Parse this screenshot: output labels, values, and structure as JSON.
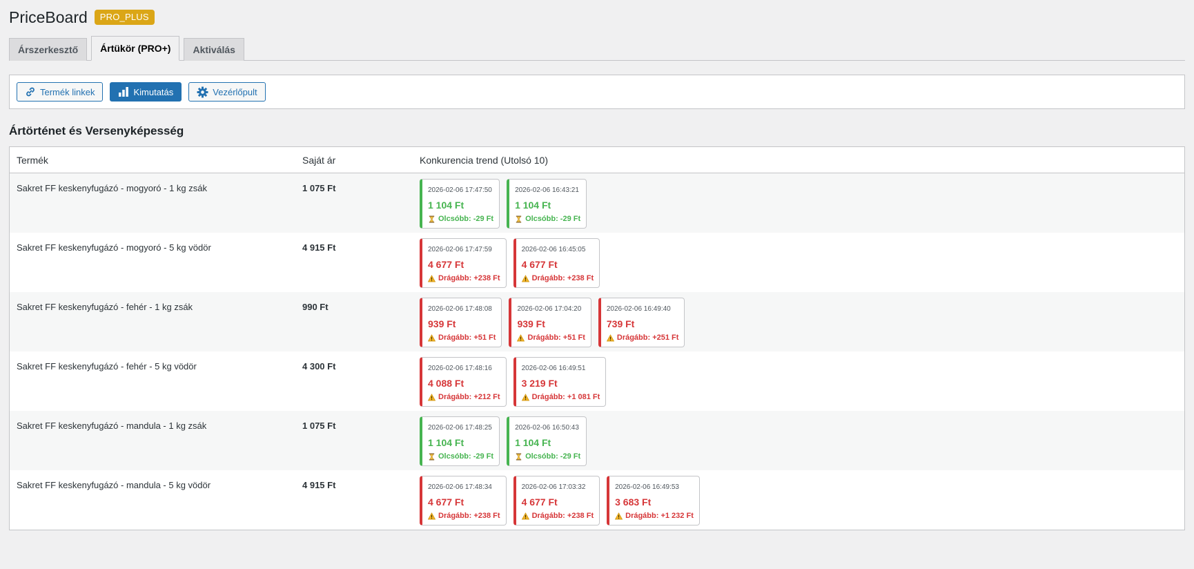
{
  "header": {
    "title": "PriceBoard",
    "badge": "PRO_PLUS"
  },
  "tabs": [
    {
      "label": "Árszerkesztő"
    },
    {
      "label": "Ártükör (PRO+)",
      "active": true
    },
    {
      "label": "Aktiválás"
    }
  ],
  "toolbar": {
    "links_label": "Termék linkek",
    "stats_label": "Kimutatás",
    "dashboard_label": "Vezérlőpult"
  },
  "section_title": "Ártörténet és Versenyképesség",
  "table": {
    "headers": {
      "product": "Termék",
      "own_price": "Saját ár",
      "trend": "Konkurencia trend (Utolsó 10)"
    },
    "rows": [
      {
        "product": "Sakret FF keskenyfugázó - mogyoró - 1 kg zsák",
        "own_price": "1 075 Ft",
        "cards": [
          {
            "ts": "2026-02-06 17:47:50",
            "price": "1 104 Ft",
            "status": "cheaper",
            "note": "Olcsóbb: -29 Ft"
          },
          {
            "ts": "2026-02-06 16:43:21",
            "price": "1 104 Ft",
            "status": "cheaper",
            "note": "Olcsóbb: -29 Ft"
          }
        ]
      },
      {
        "product": "Sakret FF keskenyfugázó - mogyoró - 5 kg vödör",
        "own_price": "4 915 Ft",
        "cards": [
          {
            "ts": "2026-02-06 17:47:59",
            "price": "4 677 Ft",
            "status": "pricier",
            "note": "Drágább: +238 Ft"
          },
          {
            "ts": "2026-02-06 16:45:05",
            "price": "4 677 Ft",
            "status": "pricier",
            "note": "Drágább: +238 Ft"
          }
        ]
      },
      {
        "product": "Sakret FF keskenyfugázó - fehér - 1 kg zsák",
        "own_price": "990 Ft",
        "cards": [
          {
            "ts": "2026-02-06 17:48:08",
            "price": "939 Ft",
            "status": "pricier",
            "note": "Drágább: +51 Ft"
          },
          {
            "ts": "2026-02-06 17:04:20",
            "price": "939 Ft",
            "status": "pricier",
            "note": "Drágább: +51 Ft"
          },
          {
            "ts": "2026-02-06 16:49:40",
            "price": "739 Ft",
            "status": "pricier",
            "note": "Drágább: +251 Ft"
          }
        ]
      },
      {
        "product": "Sakret FF keskenyfugázó - fehér - 5 kg vödör",
        "own_price": "4 300 Ft",
        "cards": [
          {
            "ts": "2026-02-06 17:48:16",
            "price": "4 088 Ft",
            "status": "pricier",
            "note": "Drágább: +212 Ft"
          },
          {
            "ts": "2026-02-06 16:49:51",
            "price": "3 219 Ft",
            "status": "pricier",
            "note": "Drágább: +1 081 Ft"
          }
        ]
      },
      {
        "product": "Sakret FF keskenyfugázó - mandula - 1 kg zsák",
        "own_price": "1 075 Ft",
        "cards": [
          {
            "ts": "2026-02-06 17:48:25",
            "price": "1 104 Ft",
            "status": "cheaper",
            "note": "Olcsóbb: -29 Ft"
          },
          {
            "ts": "2026-02-06 16:50:43",
            "price": "1 104 Ft",
            "status": "cheaper",
            "note": "Olcsóbb: -29 Ft"
          }
        ]
      },
      {
        "product": "Sakret FF keskenyfugázó - mandula - 5 kg vödör",
        "own_price": "4 915 Ft",
        "cards": [
          {
            "ts": "2026-02-06 17:48:34",
            "price": "4 677 Ft",
            "status": "pricier",
            "note": "Drágább: +238 Ft"
          },
          {
            "ts": "2026-02-06 17:03:32",
            "price": "4 677 Ft",
            "status": "pricier",
            "note": "Drágább: +238 Ft"
          },
          {
            "ts": "2026-02-06 16:49:53",
            "price": "3 683 Ft",
            "status": "pricier",
            "note": "Drágább: +1 232 Ft"
          }
        ]
      }
    ]
  },
  "colors": {
    "accent": "#2271b1",
    "badge": "#dba617",
    "cheaper": "#46b450",
    "pricier": "#d63638"
  },
  "icons": {
    "links": "link-icon",
    "stats": "bar-chart-icon",
    "dashboard": "gear-icon",
    "cheaper": "hourglass-icon",
    "pricier": "warning-icon"
  }
}
